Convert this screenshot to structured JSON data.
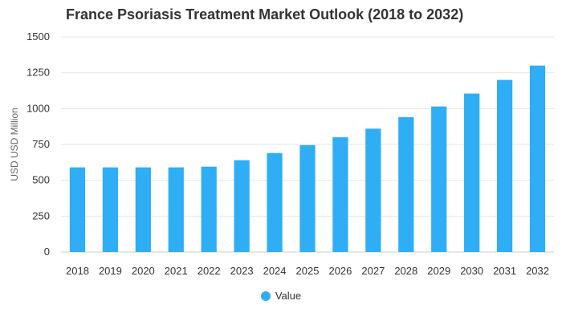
{
  "title": "France Psoriasis Treatment Market Outlook (2018 to 2032)",
  "colors": {
    "bar": "#2fadf5",
    "grid": "#e6e6e6",
    "axis": "#cccccc"
  },
  "chart_data": {
    "type": "bar",
    "title": "France Psoriasis Treatment Market Outlook (2018 to 2032)",
    "xlabel": "",
    "ylabel": "USD USD Million",
    "ylim": [
      0,
      1500
    ],
    "yticks": [
      0,
      250,
      500,
      750,
      1000,
      1250,
      1500
    ],
    "grid": true,
    "legend_position": "bottom-center",
    "categories": [
      "2018",
      "2019",
      "2020",
      "2021",
      "2022",
      "2023",
      "2024",
      "2025",
      "2026",
      "2027",
      "2028",
      "2029",
      "2030",
      "2031",
      "2032"
    ],
    "series": [
      {
        "name": "Value",
        "values": [
          590,
          590,
          590,
          590,
          595,
          640,
          690,
          745,
          800,
          860,
          940,
          1015,
          1105,
          1200,
          1300
        ]
      }
    ]
  }
}
